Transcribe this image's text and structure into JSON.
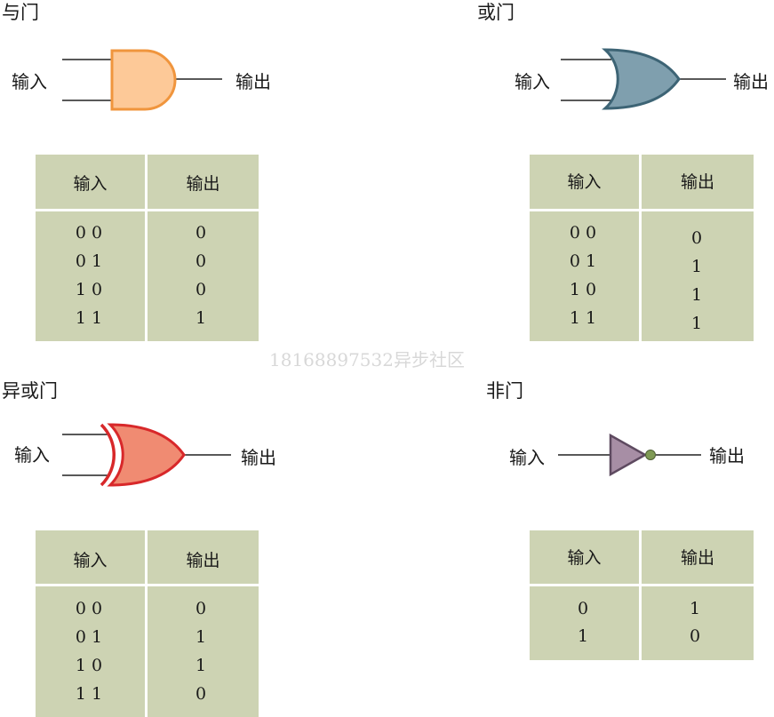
{
  "watermark": "18168897532异步社区",
  "gates": {
    "and": {
      "title": "与门",
      "input_label": "输入",
      "output_label": "输出",
      "fill": "#fdc998",
      "stroke": "#f0953d",
      "table": {
        "headers": [
          "输入",
          "输出"
        ],
        "rows": [
          {
            "in": "0 0",
            "out": "0"
          },
          {
            "in": "0 1",
            "out": "0"
          },
          {
            "in": "1 0",
            "out": "0"
          },
          {
            "in": "1 1",
            "out": "1"
          }
        ]
      }
    },
    "or": {
      "title": "或门",
      "input_label": "输入",
      "output_label": "输出",
      "fill": "#7f9fae",
      "stroke": "#3d6475",
      "table": {
        "headers": [
          "输入",
          "输出"
        ],
        "rows": [
          {
            "in": "0 0",
            "out": "0"
          },
          {
            "in": "0 1",
            "out": "1"
          },
          {
            "in": "1 0",
            "out": "1"
          },
          {
            "in": "1 1",
            "out": "1"
          }
        ]
      }
    },
    "xor": {
      "title": "异或门",
      "input_label": "输入",
      "output_label": "输出",
      "fill": "#f08b72",
      "stroke": "#d8282a",
      "table": {
        "headers": [
          "输入",
          "输出"
        ],
        "rows": [
          {
            "in": "0 0",
            "out": "0"
          },
          {
            "in": "0 1",
            "out": "1"
          },
          {
            "in": "1 0",
            "out": "1"
          },
          {
            "in": "1 1",
            "out": "0"
          }
        ]
      }
    },
    "not": {
      "title": "非门",
      "input_label": "输入",
      "output_label": "输出",
      "fill": "#a78ea5",
      "stroke": "#5e4a60",
      "bubble": "#7f9a55",
      "table": {
        "headers": [
          "输入",
          "输出"
        ],
        "rows": [
          {
            "in": "0",
            "out": "1"
          },
          {
            "in": "1",
            "out": "0"
          }
        ]
      }
    }
  },
  "table_color": "#cdd3b3"
}
